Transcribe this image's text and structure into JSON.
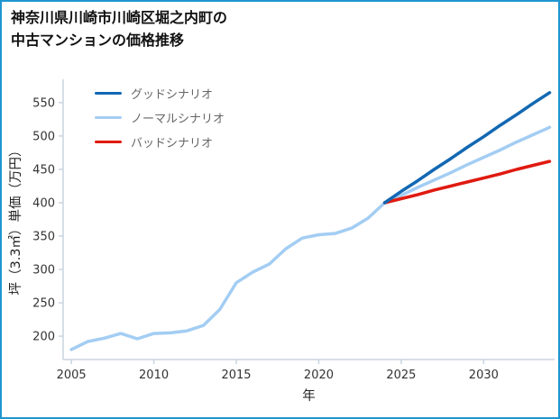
{
  "frame_color": "#2095d0",
  "title": {
    "line1": "神奈川県川崎市川崎区堀之内町の",
    "line2": "中古マンションの価格推移"
  },
  "chart_data": {
    "type": "line",
    "title": "神奈川県川崎市川崎区堀之内町の中古マンションの価格推移",
    "xlabel": "年",
    "ylabel": "坪（3.3㎡）単価（万円）",
    "xlim": [
      2004.5,
      2034.3
    ],
    "ylim": [
      165,
      585
    ],
    "xticks": [
      2005,
      2010,
      2015,
      2020,
      2025,
      2030
    ],
    "yticks": [
      200,
      250,
      300,
      350,
      400,
      450,
      500,
      550
    ],
    "grid": false,
    "legend_position": "top-left",
    "axis_color": "#c9d4e0",
    "tick_text_color": "#333333",
    "axis_title_color": "#222222",
    "legend_text_color": "#666666",
    "series": [
      {
        "id": "good-scenario",
        "name": "グッドシナリオ",
        "color": "#1268b3",
        "width": 3.5,
        "z": 2,
        "x": [
          2024,
          2025,
          2026,
          2027,
          2028,
          2029,
          2030,
          2031,
          2032,
          2033,
          2034
        ],
        "y": [
          400,
          417,
          433,
          450,
          466,
          483,
          499,
          516,
          532,
          549,
          565
        ]
      },
      {
        "id": "normal-scenario",
        "name": "ノーマルシナリオ",
        "color": "#a3cdf3",
        "width": 3.5,
        "z": 0,
        "x": [
          2005,
          2006,
          2007,
          2008,
          2009,
          2010,
          2011,
          2012,
          2013,
          2014,
          2015,
          2016,
          2017,
          2018,
          2019,
          2020,
          2021,
          2022,
          2023,
          2024,
          2025,
          2026,
          2027,
          2028,
          2029,
          2030,
          2031,
          2032,
          2033,
          2034
        ],
        "y": [
          180,
          192,
          197,
          204,
          196,
          204,
          205,
          208,
          216,
          240,
          280,
          296,
          308,
          331,
          347,
          352,
          354,
          362,
          377,
          400,
          411,
          423,
          434,
          445,
          457,
          468,
          479,
          491,
          502,
          513
        ]
      },
      {
        "id": "bad-scenario",
        "name": "バッドシナリオ",
        "color": "#e01a10",
        "width": 3.5,
        "z": 1,
        "x": [
          2024,
          2025,
          2026,
          2027,
          2028,
          2029,
          2030,
          2031,
          2032,
          2033,
          2034
        ],
        "y": [
          400,
          406,
          412,
          419,
          425,
          431,
          437,
          443,
          450,
          456,
          462
        ]
      }
    ]
  }
}
